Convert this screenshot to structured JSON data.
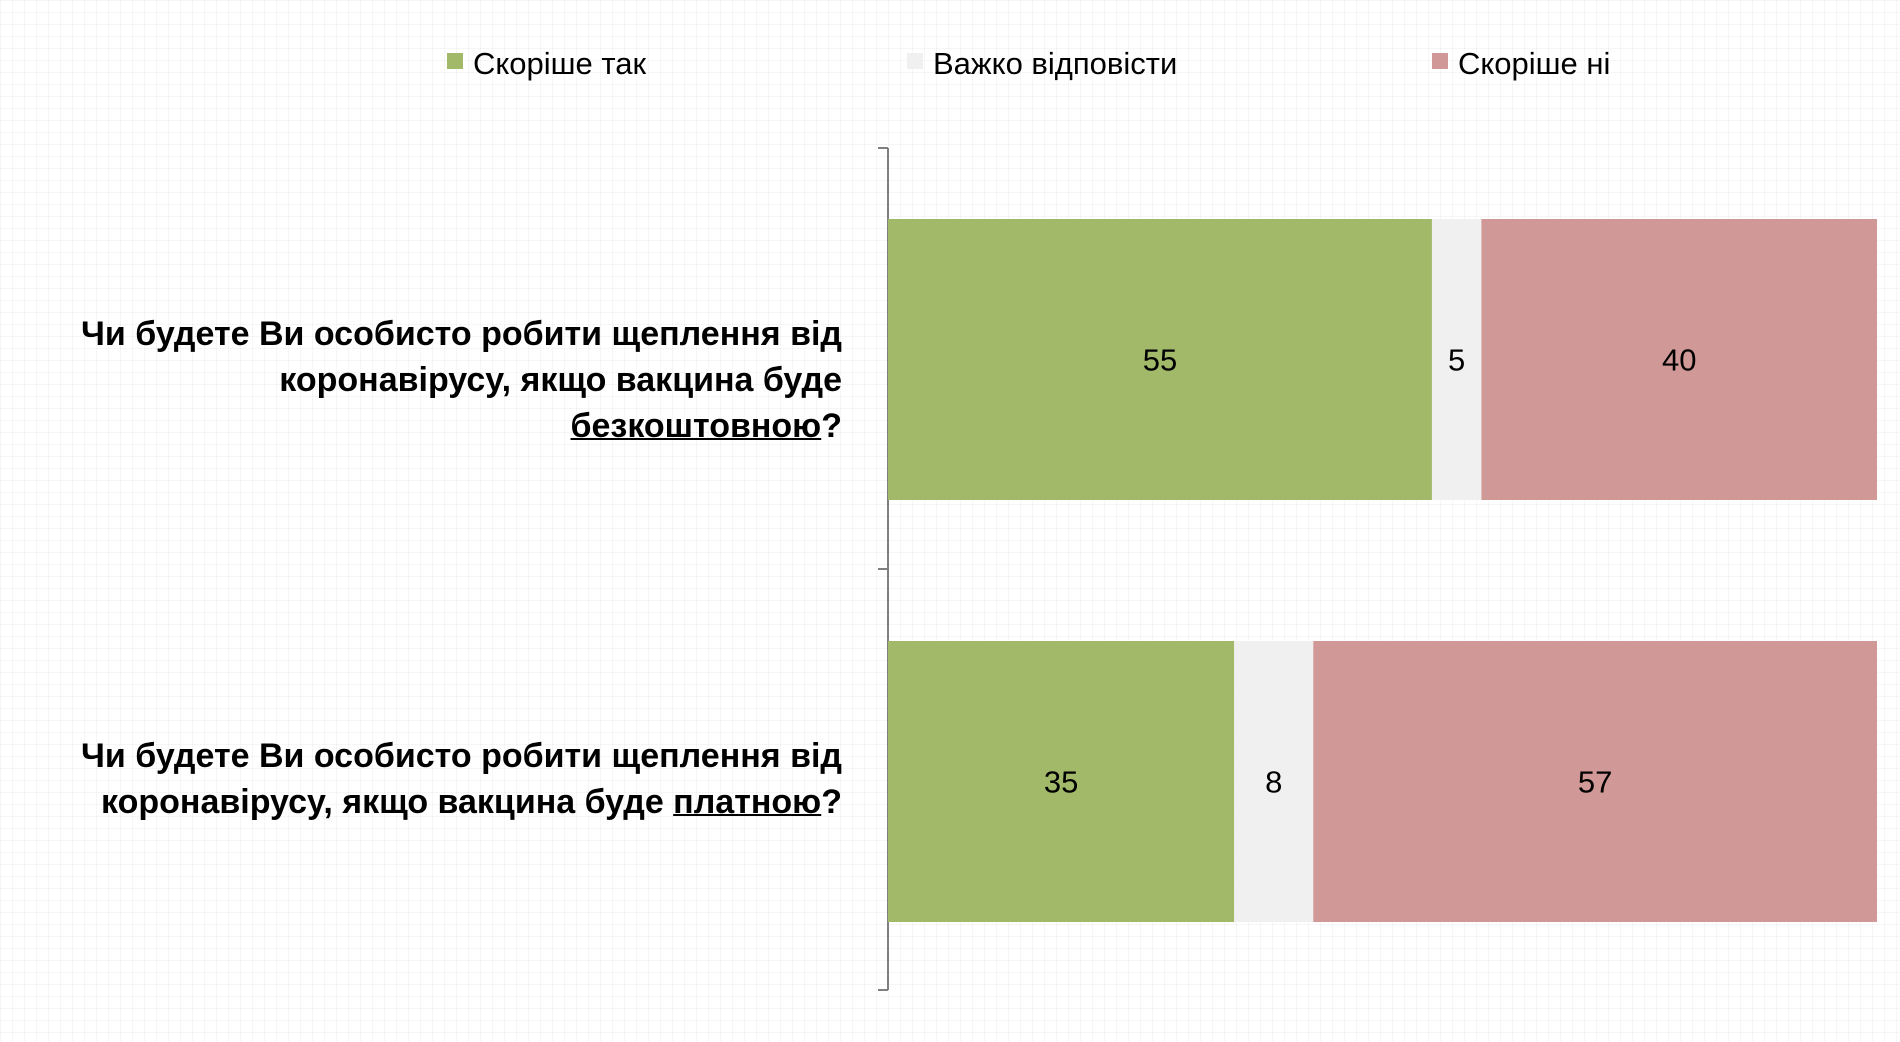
{
  "chart_data": {
    "type": "bar",
    "orientation": "horizontal",
    "stacked": true,
    "categories": [
      {
        "text_before": "Чи будете Ви особисто робити щеплення від коронавірусу, якщо вакцина буде ",
        "emphasis": "безкоштовною",
        "text_after": "?"
      },
      {
        "text_before": "Чи будете Ви особисто робити щеплення від коронавірусу, якщо вакцина буде ",
        "emphasis": "платною",
        "text_after": "?"
      }
    ],
    "series": [
      {
        "name": "Скоріше так",
        "color": "#a1b968",
        "values": [
          55,
          35
        ]
      },
      {
        "name": "Важко відповісти",
        "color": "#f0f0f0",
        "values": [
          5,
          8
        ]
      },
      {
        "name": "Скоріше ні",
        "color": "#d09896",
        "values": [
          40,
          57
        ]
      }
    ],
    "xlim": [
      0,
      100
    ],
    "legend": "top",
    "data_labels": true,
    "grid": false
  }
}
